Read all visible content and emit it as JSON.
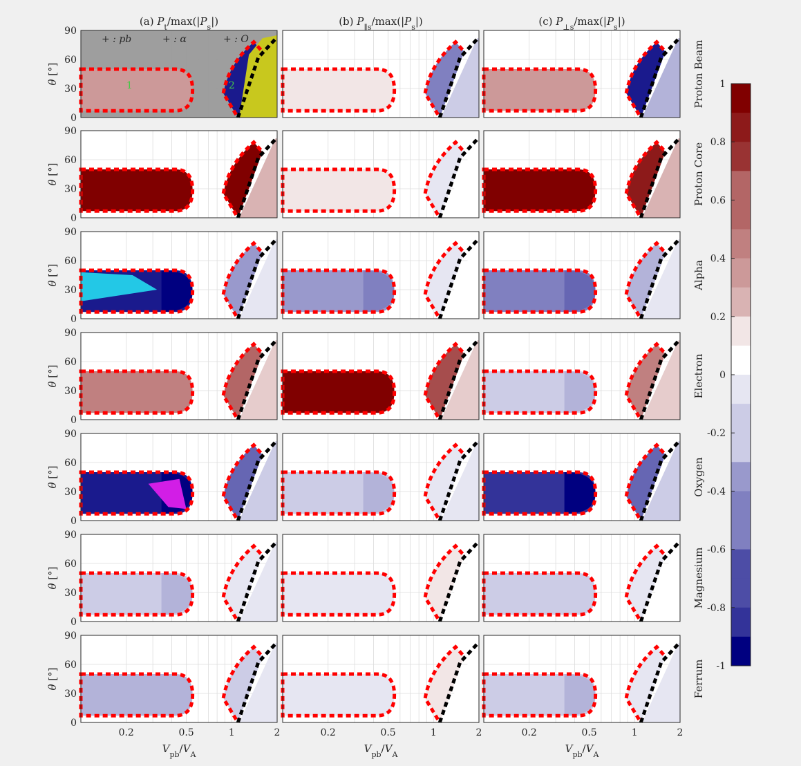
{
  "figure": {
    "background": "#f0f0f0"
  },
  "chart_data": {
    "type": "heatmap",
    "columns": [
      {
        "prefix": "(a)",
        "var": "P",
        "sub": "t",
        "rest": "/max(|",
        "var2": "P",
        "sub2": "s",
        "tail": "|)"
      },
      {
        "prefix": "(b)",
        "var": "P",
        "sub": "‖s",
        "rest": "/max(|",
        "var2": "P",
        "sub2": "s",
        "tail": "|)"
      },
      {
        "prefix": "(c)",
        "var": "P",
        "sub": "⊥s",
        "rest": "/max(|",
        "var2": "P",
        "sub2": "s",
        "tail": "|)"
      }
    ],
    "rows": [
      {
        "label": "Proton Beam",
        "values": [
          0.35,
          0.1,
          0.35
        ],
        "unstable_values": [
          -0.9,
          -0.5,
          -0.9
        ]
      },
      {
        "label": "Proton Core",
        "values": [
          0.95,
          0.08,
          0.95
        ],
        "unstable_values": [
          0.95,
          -0.1,
          0.85
        ]
      },
      {
        "label": "Alpha",
        "values": [
          -0.9,
          -0.45,
          -0.55
        ],
        "unstable_values": [
          -0.4,
          -0.1,
          -0.35
        ]
      },
      {
        "label": "Electron",
        "values": [
          0.45,
          0.95,
          -0.25
        ],
        "unstable_values": [
          0.6,
          0.7,
          0.5
        ]
      },
      {
        "label": "Oxygen",
        "values": [
          -0.95,
          -0.25,
          -0.85
        ],
        "unstable_values": [
          -0.6,
          -0.15,
          -0.6
        ]
      },
      {
        "label": "Magnesium",
        "values": [
          -0.25,
          -0.1,
          -0.2
        ],
        "unstable_values": [
          -0.15,
          0.05,
          -0.1
        ]
      },
      {
        "label": "Ferrum",
        "values": [
          -0.3,
          -0.12,
          -0.25
        ],
        "unstable_values": [
          -0.2,
          0.1,
          -0.15
        ]
      }
    ],
    "xlabel": {
      "var": "V",
      "sub": "pb",
      "rest": "/",
      "var2": "V",
      "sub2": "A"
    },
    "ylabel": {
      "var": "θ",
      "unit": "[°]"
    },
    "x_scale": "log",
    "xlim": [
      0.1,
      2
    ],
    "x_ticks": [
      0.2,
      0.5,
      1,
      2
    ],
    "x_tick_labels": [
      "0.2",
      "0.5",
      "1",
      "2"
    ],
    "ylim": [
      0,
      90
    ],
    "y_ticks": [
      0,
      30,
      60,
      90
    ],
    "y_tick_labels": [
      "0",
      "30",
      "60",
      "90"
    ],
    "grid": true,
    "colorbar": {
      "range": [
        -1,
        1
      ],
      "ticks": [
        1,
        0.8,
        0.6,
        0.4,
        0.2,
        0,
        -0.2,
        -0.4,
        -0.6,
        -0.8,
        -1
      ],
      "tick_labels": [
        "1",
        "0.8",
        "0.6",
        "0.4",
        "0.2",
        "0",
        "-0.2",
        "-0.4",
        "-0.6",
        "-0.8",
        "-1"
      ],
      "colors": {
        "neg": "#000080",
        "mid": "#ffffff",
        "pos": "#800000"
      }
    },
    "boundary_colors": {
      "unstable_region": "#ff0000",
      "threshold": "#000000"
    },
    "dominance_legend": [
      {
        "text": "+ : pb",
        "color": "#e6e61e"
      },
      {
        "text": "+ : α",
        "color": "#23c8d2"
      },
      {
        "text": "+ : O",
        "color": "#e61ee6"
      }
    ],
    "dominance_colors": {
      "background": "#999999",
      "pb": "#c8c81e",
      "alpha": "#23c8e6",
      "oxygen": "#d21ee6"
    },
    "region_labels": [
      {
        "text": "1",
        "color": "#46c846"
      },
      {
        "text": "2",
        "color": "#46c846"
      }
    ]
  }
}
